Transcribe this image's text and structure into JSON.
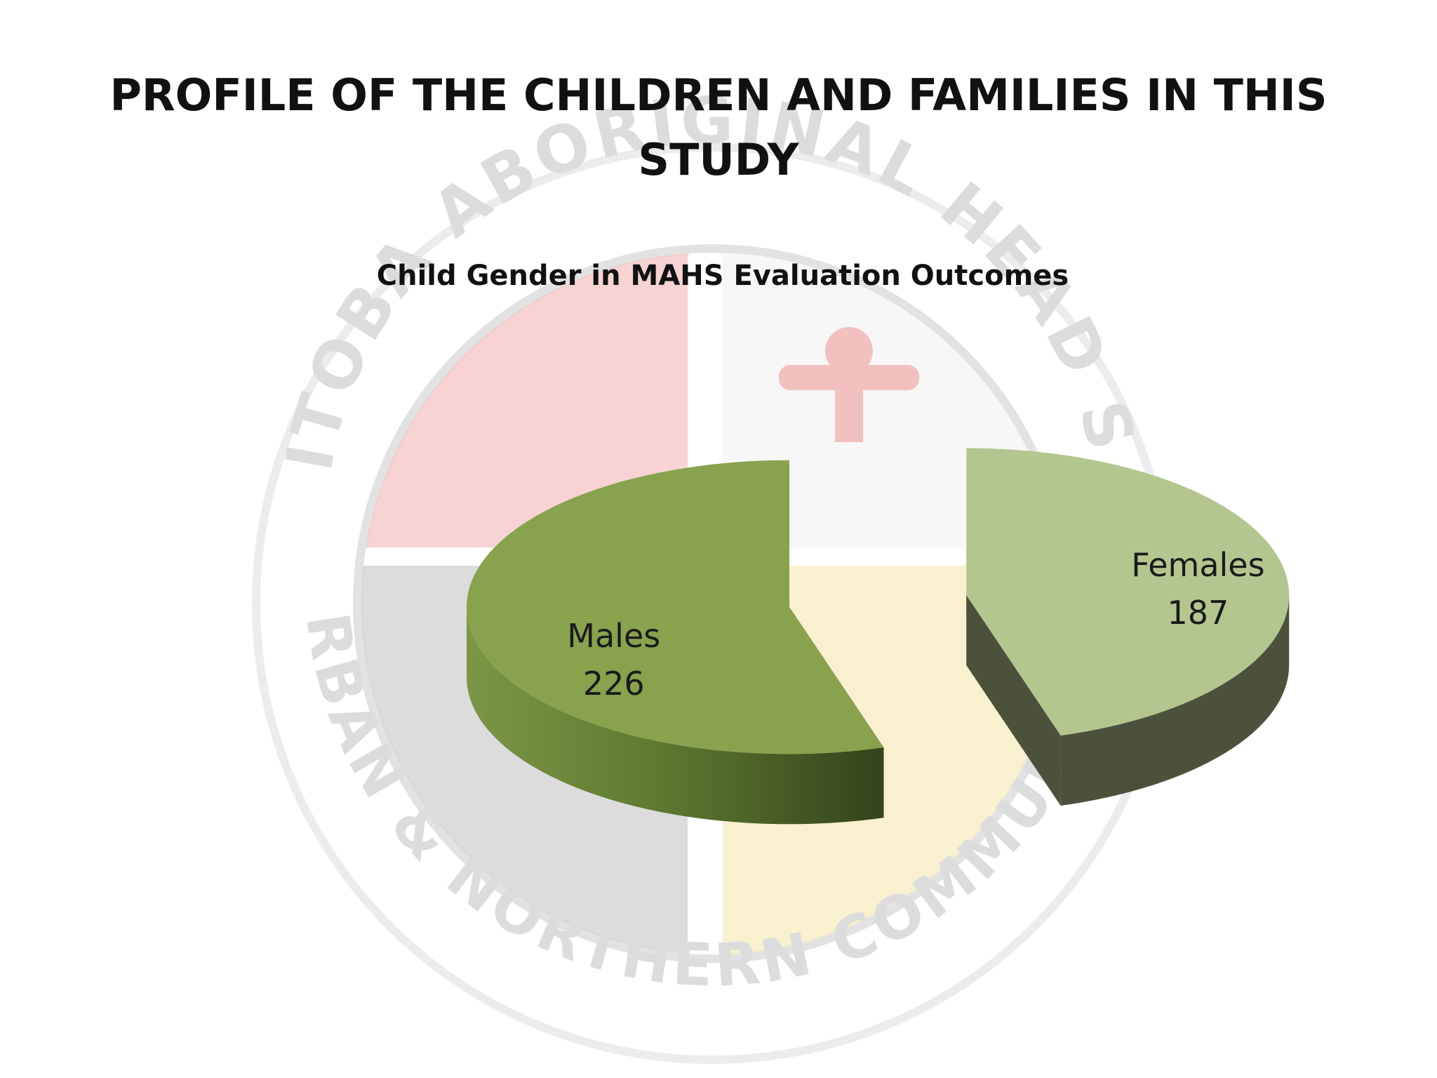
{
  "slide": {
    "title": "PROFILE OF THE CHILDREN AND FAMILIES IN THIS STUDY"
  },
  "watermark": {
    "top_text": "MANITOBA ABORIGINAL HEAD START",
    "bottom_text": "URBAN & NORTHERN COMMUNITIES",
    "colors": {
      "red": "#f2b8b8",
      "white": "#f6f6f6",
      "gray": "#cfcfcf",
      "yellow": "#f7ebc2",
      "ring": "#e6e6e6"
    }
  },
  "chart_data": {
    "type": "pie",
    "title": "Child Gender in MAHS Evaluation Outcomes",
    "style": "3d-exploded",
    "slices": [
      {
        "label": "Females",
        "value": 187,
        "color": "#b4c68f",
        "side_color": "#4c513c"
      },
      {
        "label": "Males",
        "value": 226,
        "color": "#88a24e",
        "side_color": "#4d6228"
      }
    ],
    "legend": "none",
    "data_labels": "label-and-value"
  }
}
